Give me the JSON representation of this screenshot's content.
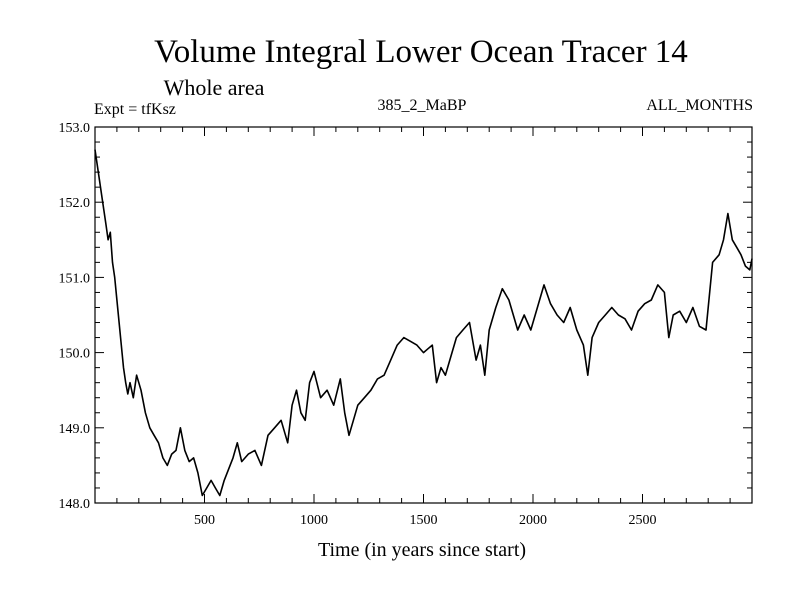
{
  "chart_data": {
    "type": "line",
    "title": "Volume Integral Lower Ocean Tracer 14",
    "subtitle": "Whole area",
    "experiment_label": "Expt = tfKsz",
    "center_label": "385_2_MaBP",
    "right_label": "ALL_MONTHS",
    "xlabel": "Time (in years since start)",
    "ylabel": "",
    "xlim": [
      0,
      3000
    ],
    "ylim": [
      148.0,
      153.0
    ],
    "x_ticks": [
      500,
      1000,
      1500,
      2000,
      2500
    ],
    "x_tick_labels": [
      "500",
      "1000",
      "1500",
      "2000",
      "2500"
    ],
    "y_ticks": [
      148.0,
      149.0,
      150.0,
      151.0,
      152.0,
      153.0
    ],
    "y_tick_labels": [
      "148.0",
      "149.0",
      "150.0",
      "151.0",
      "152.0",
      "153.0"
    ],
    "series": [
      {
        "name": "Volume Integral Lower Ocean Tracer 14",
        "color": "#000000",
        "x": [
          0,
          10,
          20,
          30,
          40,
          50,
          60,
          70,
          80,
          90,
          100,
          110,
          120,
          130,
          140,
          150,
          160,
          175,
          190,
          210,
          230,
          250,
          270,
          290,
          310,
          330,
          350,
          370,
          390,
          410,
          430,
          450,
          470,
          490,
          510,
          530,
          550,
          570,
          590,
          610,
          630,
          650,
          670,
          700,
          730,
          760,
          790,
          820,
          850,
          880,
          900,
          920,
          940,
          960,
          980,
          1000,
          1030,
          1060,
          1090,
          1120,
          1140,
          1160,
          1180,
          1200,
          1230,
          1260,
          1290,
          1320,
          1350,
          1380,
          1410,
          1440,
          1470,
          1500,
          1520,
          1540,
          1560,
          1580,
          1600,
          1620,
          1650,
          1680,
          1710,
          1740,
          1760,
          1780,
          1800,
          1830,
          1860,
          1890,
          1910,
          1930,
          1960,
          1990,
          2020,
          2050,
          2080,
          2110,
          2140,
          2170,
          2200,
          2230,
          2250,
          2270,
          2300,
          2330,
          2360,
          2390,
          2420,
          2450,
          2480,
          2510,
          2540,
          2570,
          2600,
          2620,
          2640,
          2670,
          2700,
          2730,
          2760,
          2790,
          2820,
          2850,
          2870,
          2890,
          2910,
          2930,
          2950,
          2970,
          2990,
          3000
        ],
        "y": [
          152.7,
          152.5,
          152.3,
          152.1,
          151.9,
          151.7,
          151.5,
          151.6,
          151.2,
          151.0,
          150.7,
          150.4,
          150.1,
          149.8,
          149.6,
          149.45,
          149.6,
          149.4,
          149.7,
          149.5,
          149.2,
          149.0,
          148.9,
          148.8,
          148.6,
          148.5,
          148.65,
          148.7,
          149.0,
          148.7,
          148.55,
          148.6,
          148.4,
          148.1,
          148.2,
          148.3,
          148.2,
          148.1,
          148.3,
          148.45,
          148.6,
          148.8,
          148.55,
          148.65,
          148.7,
          148.5,
          148.9,
          149.0,
          149.1,
          148.8,
          149.3,
          149.5,
          149.2,
          149.1,
          149.6,
          149.75,
          149.4,
          149.5,
          149.3,
          149.65,
          149.2,
          148.9,
          149.1,
          149.3,
          149.4,
          149.5,
          149.65,
          149.7,
          149.9,
          150.1,
          150.2,
          150.15,
          150.1,
          150.0,
          150.05,
          150.1,
          149.6,
          149.8,
          149.7,
          149.9,
          150.2,
          150.3,
          150.4,
          149.9,
          150.1,
          149.7,
          150.3,
          150.6,
          150.85,
          150.7,
          150.5,
          150.3,
          150.5,
          150.3,
          150.6,
          150.9,
          150.65,
          150.5,
          150.4,
          150.6,
          150.3,
          150.1,
          149.7,
          150.2,
          150.4,
          150.5,
          150.6,
          150.5,
          150.45,
          150.3,
          150.55,
          150.65,
          150.7,
          150.9,
          150.8,
          150.2,
          150.5,
          150.55,
          150.4,
          150.6,
          150.35,
          150.3,
          151.2,
          151.3,
          151.5,
          151.85,
          151.5,
          151.4,
          151.3,
          151.15,
          151.1,
          151.25
        ]
      }
    ]
  }
}
